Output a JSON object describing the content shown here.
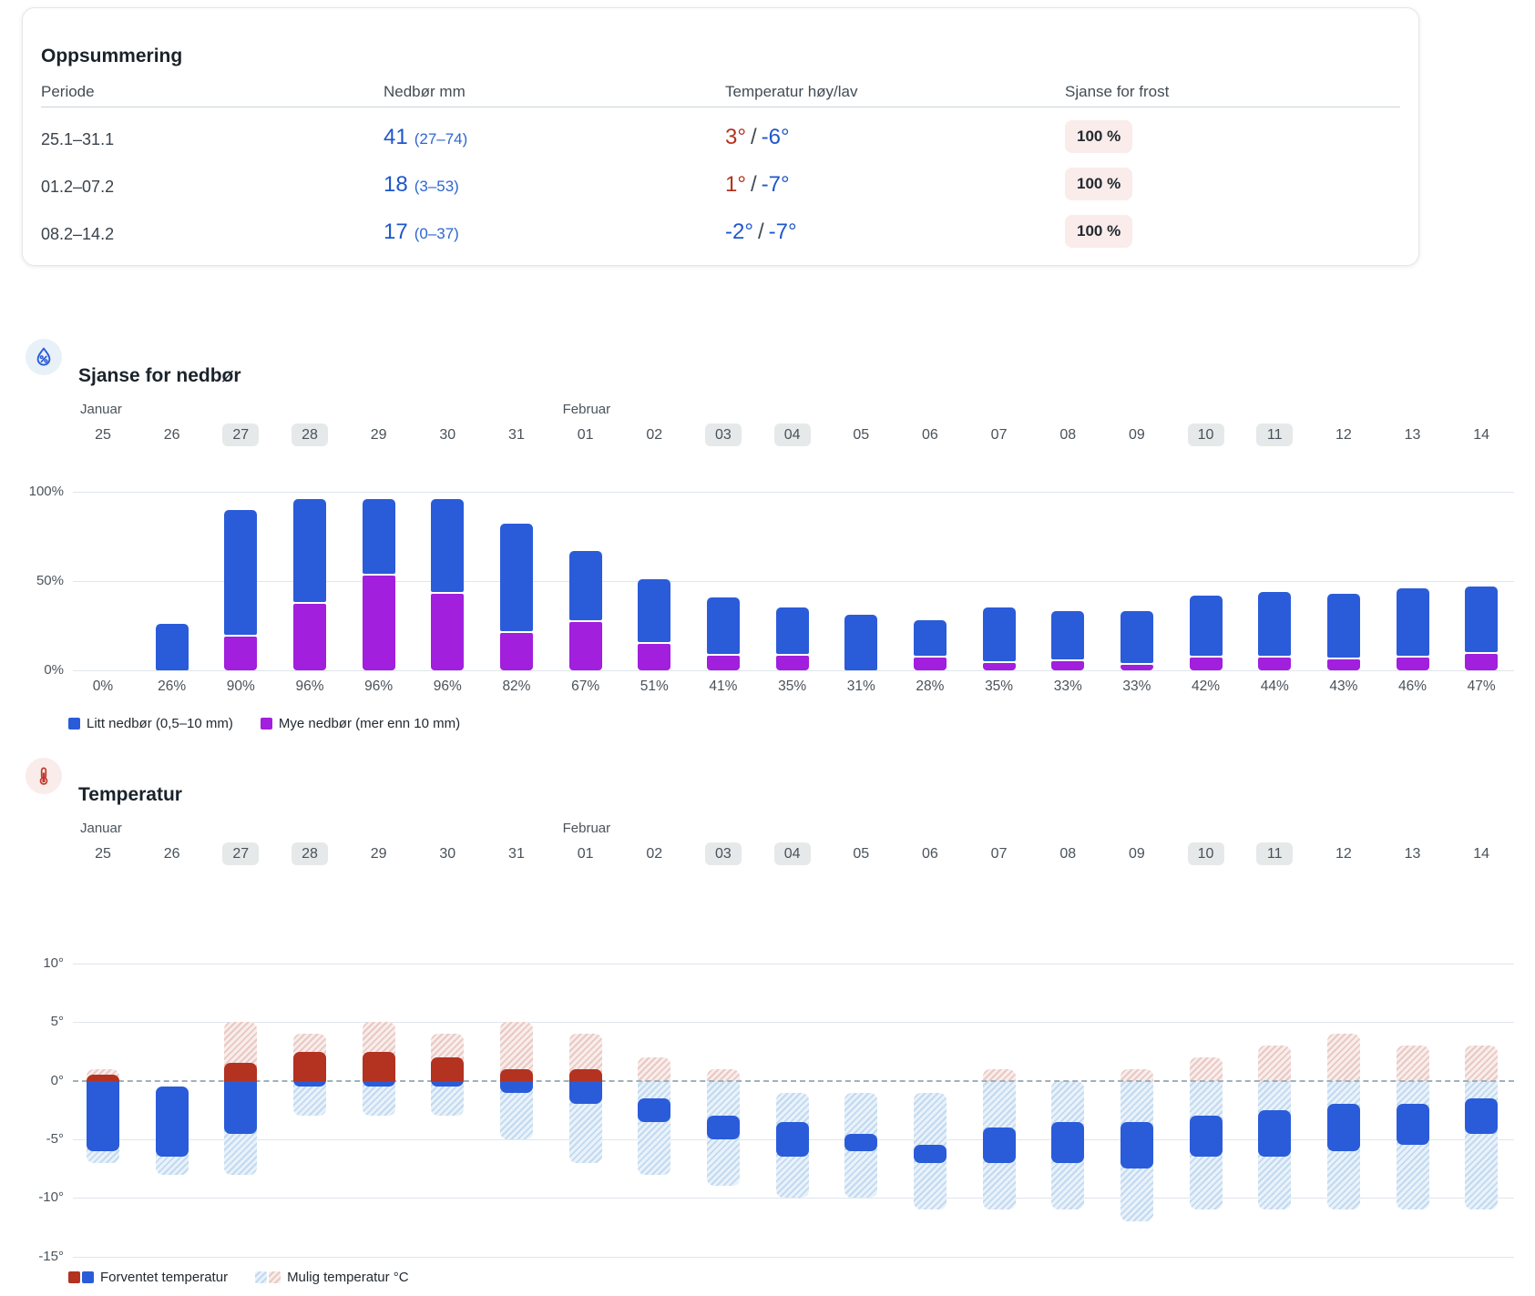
{
  "summary": {
    "title": "Oppsummering",
    "columns": [
      "Periode",
      "Nedbør mm",
      "Temperatur høy/lav",
      "Sjanse for frost"
    ],
    "rows": [
      {
        "periode": "25.1–31.1",
        "nedbor": "41",
        "nedbor_range": "(27–74)",
        "temp_high": "3°",
        "temp_high_color": "#b33220",
        "temp_low": "-6°",
        "frost": "100 %"
      },
      {
        "periode": "01.2–07.2",
        "nedbor": "18",
        "nedbor_range": "(3–53)",
        "temp_high": "1°",
        "temp_high_color": "#b33220",
        "temp_low": "-7°",
        "frost": "100 %"
      },
      {
        "periode": "08.2–14.2",
        "nedbor": "17",
        "nedbor_range": "(0–37)",
        "temp_high": "-2°",
        "temp_high_color": "#2057cd",
        "temp_low": "-7°",
        "frost": "100 %"
      }
    ]
  },
  "precipitation_section": {
    "title": "Sjanse for nedbør",
    "icon": "droplet-percent-icon",
    "legend": [
      {
        "label": "Litt nedbør (0,5–10 mm)",
        "swatches": [
          "solid-blue"
        ]
      },
      {
        "label": "Mye nedbør (mer enn 10 mm)",
        "swatches": [
          "solid-purple"
        ]
      }
    ]
  },
  "temperature_section": {
    "title": "Temperatur",
    "icon": "thermometer-icon",
    "legend": [
      {
        "label": "Forventet temperatur",
        "swatches": [
          "solid-red",
          "solid-blue"
        ]
      },
      {
        "label": "Mulig temperatur °C",
        "swatches": [
          "hatch-blue",
          "hatch-pink"
        ]
      }
    ]
  },
  "colors": {
    "bar_blue": "#2a5cd9",
    "bar_purple": "#a11fdd",
    "bar_red": "#b33220",
    "summary_value_blue": "#1e56cb",
    "summary_range_blue": "#2e66d0",
    "frost_badge_bg": "#f9ecea",
    "pill_bg": "#e6e9e9"
  },
  "chart_data": [
    {
      "type": "bar",
      "stacked": true,
      "title": "Sjanse for nedbør",
      "categories": [
        "25",
        "26",
        "27",
        "28",
        "29",
        "30",
        "31",
        "01",
        "02",
        "03",
        "04",
        "05",
        "06",
        "07",
        "08",
        "09",
        "10",
        "11",
        "12",
        "13",
        "14"
      ],
      "months": [
        {
          "index": 0,
          "label": "Januar"
        },
        {
          "index": 7,
          "label": "Februar"
        }
      ],
      "highlighted_day_indices": [
        2,
        3,
        9,
        10,
        16,
        17
      ],
      "series": [
        {
          "name": "Litt nedbør (0,5–10 mm)",
          "values": [
            0,
            26,
            71,
            59,
            43,
            53,
            61,
            40,
            36,
            33,
            27,
            31,
            21,
            31,
            28,
            30,
            35,
            37,
            37,
            39,
            38
          ]
        },
        {
          "name": "Mye nedbør (mer enn 10 mm)",
          "values": [
            0,
            0,
            19,
            37,
            53,
            43,
            21,
            27,
            15,
            8,
            8,
            0,
            7,
            4,
            5,
            3,
            7,
            7,
            6,
            7,
            9
          ]
        }
      ],
      "totals": [
        0,
        26,
        90,
        96,
        96,
        96,
        82,
        67,
        51,
        41,
        35,
        31,
        28,
        35,
        33,
        33,
        42,
        44,
        43,
        46,
        47
      ],
      "total_labels": [
        "0%",
        "26%",
        "90%",
        "96%",
        "96%",
        "96%",
        "82%",
        "67%",
        "51%",
        "41%",
        "35%",
        "31%",
        "28%",
        "35%",
        "33%",
        "33%",
        "42%",
        "44%",
        "43%",
        "46%",
        "47%"
      ],
      "ylabels": [
        {
          "value": 100,
          "label": "100%"
        },
        {
          "value": 50,
          "label": "50%"
        },
        {
          "value": 0,
          "label": "0%"
        }
      ],
      "ylim": [
        0,
        100
      ]
    },
    {
      "type": "range-bar",
      "title": "Temperatur",
      "categories": [
        "25",
        "26",
        "27",
        "28",
        "29",
        "30",
        "31",
        "01",
        "02",
        "03",
        "04",
        "05",
        "06",
        "07",
        "08",
        "09",
        "10",
        "11",
        "12",
        "13",
        "14"
      ],
      "months": [
        {
          "index": 0,
          "label": "Januar"
        },
        {
          "index": 7,
          "label": "Februar"
        }
      ],
      "highlighted_day_indices": [
        2,
        3,
        9,
        10,
        16,
        17
      ],
      "expected_high_low": [
        [
          0.5,
          -6
        ],
        [
          -0.5,
          -6.5
        ],
        [
          1.5,
          -4.5
        ],
        [
          2.5,
          -0.5
        ],
        [
          2.5,
          -0.5
        ],
        [
          2,
          -0.5
        ],
        [
          1,
          -1
        ],
        [
          1,
          -2
        ],
        [
          -1.5,
          -3.5
        ],
        [
          -3,
          -5
        ],
        [
          -3.5,
          -6.5
        ],
        [
          -4.5,
          -6
        ],
        [
          -5.5,
          -7
        ],
        [
          -4,
          -7
        ],
        [
          -3.5,
          -7
        ],
        [
          -3.5,
          -7.5
        ],
        [
          -3,
          -6.5
        ],
        [
          -2.5,
          -6.5
        ],
        [
          -2,
          -6
        ],
        [
          -2,
          -5.5
        ],
        [
          -1.5,
          -4.5
        ]
      ],
      "possible_high_low": [
        [
          1,
          -7
        ],
        [
          -0.5,
          -8
        ],
        [
          5,
          -8
        ],
        [
          4,
          -3
        ],
        [
          5,
          -3
        ],
        [
          4,
          -3
        ],
        [
          5,
          -5
        ],
        [
          4,
          -7
        ],
        [
          2,
          -8
        ],
        [
          1,
          -9
        ],
        [
          -1,
          -10
        ],
        [
          -1,
          -10
        ],
        [
          -1,
          -11
        ],
        [
          1,
          -11
        ],
        [
          0,
          -11
        ],
        [
          1,
          -12
        ],
        [
          2,
          -11
        ],
        [
          3,
          -11
        ],
        [
          4,
          -11
        ],
        [
          3,
          -11
        ],
        [
          3,
          -11
        ]
      ],
      "ylabels": [
        {
          "value": 10,
          "label": "10°"
        },
        {
          "value": 5,
          "label": "5°"
        },
        {
          "value": 0,
          "label": "0°"
        },
        {
          "value": -5,
          "label": "-5°"
        },
        {
          "value": -10,
          "label": "-10°"
        },
        {
          "value": -15,
          "label": "-15°"
        }
      ],
      "ylim": [
        -15,
        10
      ],
      "zero_line": "dashed"
    }
  ]
}
